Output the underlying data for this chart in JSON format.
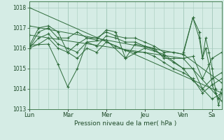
{
  "background_color": "#d5ece5",
  "grid_color": "#a8ccbf",
  "line_color": "#2d6b3a",
  "ylabel": "Pression niveau de la mer( hPa )",
  "ylim": [
    1013.0,
    1018.3
  ],
  "yticks": [
    1013,
    1014,
    1015,
    1016,
    1017,
    1018
  ],
  "day_labels": [
    "Lun",
    "Mar",
    "Mer",
    "Jeu",
    "Ven",
    "Sa"
  ],
  "day_positions": [
    0,
    48,
    96,
    144,
    192,
    228
  ],
  "total_hours": 240,
  "series": [
    {
      "x": [
        0,
        240
      ],
      "y": [
        1018.0,
        1013.8
      ]
    },
    {
      "x": [
        0,
        192,
        240
      ],
      "y": [
        1017.1,
        1015.7,
        1014.3
      ]
    },
    {
      "x": [
        0,
        192,
        240
      ],
      "y": [
        1016.65,
        1015.5,
        1013.4
      ]
    },
    {
      "x": [
        0,
        24,
        36,
        48,
        60,
        72,
        96,
        120,
        144,
        168,
        192,
        204,
        216,
        228,
        240
      ],
      "y": [
        1016.15,
        1016.2,
        1015.2,
        1014.1,
        1015.0,
        1016.3,
        1016.4,
        1015.5,
        1016.0,
        1015.7,
        1015.0,
        1014.4,
        1014.0,
        1013.5,
        1013.8
      ]
    },
    {
      "x": [
        0,
        12,
        24,
        36,
        48,
        60,
        72,
        84,
        96,
        108,
        120,
        132,
        144,
        156,
        168,
        180,
        192,
        204,
        212,
        216,
        220,
        224,
        228,
        232,
        236,
        240
      ],
      "y": [
        1016.1,
        1017.0,
        1017.1,
        1016.8,
        1015.8,
        1016.2,
        1016.5,
        1016.5,
        1016.8,
        1016.6,
        1016.5,
        1016.5,
        1016.3,
        1016.1,
        1015.8,
        1015.8,
        1015.7,
        1017.5,
        1016.8,
        1015.5,
        1016.5,
        1015.8,
        1015.0,
        1014.0,
        1013.2,
        1013.8
      ]
    },
    {
      "x": [
        0,
        12,
        24,
        36,
        48,
        60,
        72,
        84,
        96,
        108,
        120,
        132,
        144,
        156,
        168,
        180,
        192,
        204,
        216,
        228,
        240
      ],
      "y": [
        1016.0,
        1016.8,
        1017.0,
        1016.5,
        1016.5,
        1016.8,
        1016.5,
        1016.4,
        1016.9,
        1016.8,
        1015.5,
        1016.2,
        1016.1,
        1016.0,
        1015.5,
        1015.5,
        1015.5,
        1015.6,
        1014.5,
        1015.5,
        1015.8
      ]
    },
    {
      "x": [
        0,
        12,
        24,
        36,
        48,
        60,
        72,
        84,
        96,
        108,
        120,
        132,
        144,
        156,
        168,
        180,
        192,
        204,
        216,
        228,
        240
      ],
      "y": [
        1016.0,
        1016.5,
        1016.7,
        1016.2,
        1016.0,
        1015.8,
        1016.3,
        1016.1,
        1016.6,
        1016.5,
        1016.3,
        1016.3,
        1016.1,
        1015.9,
        1015.6,
        1015.3,
        1015.0,
        1015.0,
        1014.0,
        1014.5,
        1014.8
      ]
    },
    {
      "x": [
        0,
        12,
        24,
        36,
        48,
        60,
        72,
        84,
        96,
        108,
        120,
        132,
        144,
        156,
        168,
        180,
        192,
        204,
        216,
        228,
        240
      ],
      "y": [
        1016.0,
        1016.2,
        1016.5,
        1016.0,
        1015.8,
        1015.5,
        1016.0,
        1015.8,
        1016.3,
        1016.1,
        1015.9,
        1015.8,
        1015.8,
        1015.6,
        1015.3,
        1015.0,
        1014.8,
        1014.5,
        1013.8,
        1014.2,
        1014.5
      ]
    },
    {
      "x": [
        192,
        204,
        212,
        216,
        220,
        224,
        228,
        232,
        236,
        240
      ],
      "y": [
        1015.8,
        1017.5,
        1016.5,
        1015.5,
        1016.0,
        1015.2,
        1014.2,
        1013.8,
        1013.5,
        1014.0
      ]
    }
  ]
}
